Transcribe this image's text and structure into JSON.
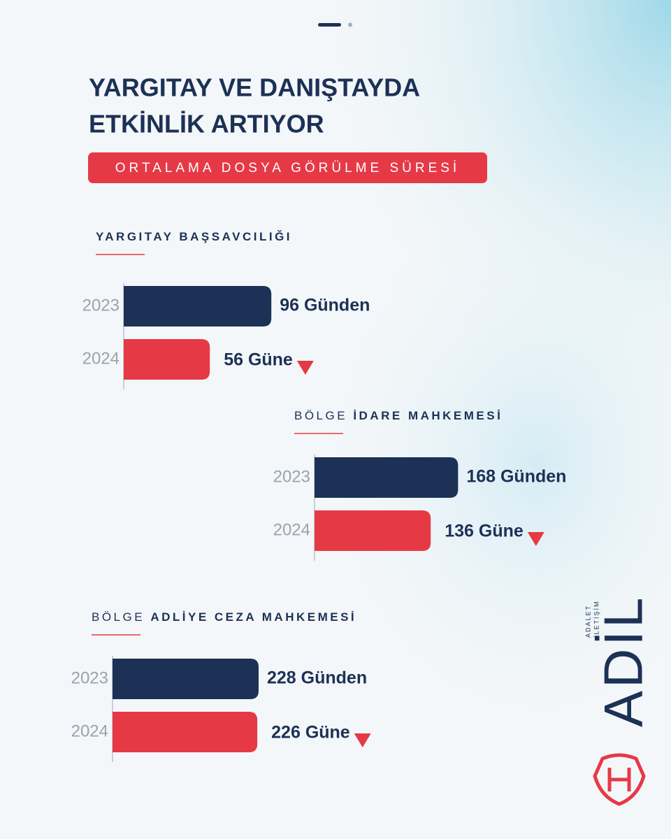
{
  "header": {
    "title": [
      "YARGITAY VE DANIŞTAYDA",
      "ETKİNLİK ARTIYOR"
    ],
    "subtitle": "ORTALAMA DOSYA GÖRÜLME SÜRESİ"
  },
  "chart_data": [
    {
      "type": "bar",
      "orientation": "horizontal",
      "title": "YARGITAY BAŞSAVCILIĞI",
      "categories": [
        "2023",
        "2024"
      ],
      "values": [
        96,
        56
      ],
      "value_labels": [
        "96 Günden",
        "56 Güne"
      ],
      "colors": [
        "#1c3155",
        "#e63946"
      ],
      "xlim": [
        0,
        100
      ]
    },
    {
      "type": "bar",
      "orientation": "horizontal",
      "title_prefix": "BÖLGE",
      "title": "İDARE MAHKEMESİ",
      "categories": [
        "2023",
        "2024"
      ],
      "values": [
        168,
        136
      ],
      "value_labels": [
        "168 Günden",
        "136 Güne"
      ],
      "colors": [
        "#1c3155",
        "#e63946"
      ],
      "xlim": [
        0,
        180
      ]
    },
    {
      "type": "bar",
      "orientation": "horizontal",
      "title_prefix": "BÖLGE",
      "title": "ADLİYE CEZA MAHKEMESİ",
      "categories": [
        "2023",
        "2024"
      ],
      "values": [
        228,
        226
      ],
      "value_labels": [
        "228 Günden",
        "226 Güne"
      ],
      "colors": [
        "#1c3155",
        "#e63946"
      ],
      "xlim": [
        0,
        240
      ]
    }
  ],
  "logo": {
    "name": "ADİL",
    "tagline": [
      "ADALET",
      "İLETİŞİM"
    ]
  }
}
